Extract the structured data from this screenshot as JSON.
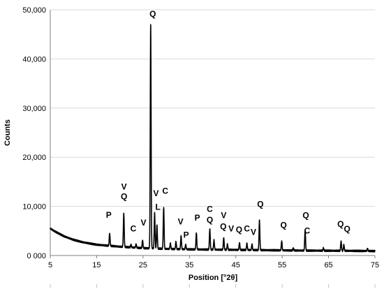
{
  "chart_data": {
    "type": "line",
    "title": "",
    "xlabel": "Position [°2θ]",
    "ylabel": "Counts",
    "xlim": [
      5,
      75
    ],
    "ylim": [
      0,
      50000
    ],
    "grid": "horizontal",
    "legend": "none",
    "x_ticks": [
      "5",
      "15",
      "25",
      "35",
      "45",
      "55",
      "65",
      "75"
    ],
    "y_ticks": [
      "0 000",
      "10,000",
      "20,000",
      "30,000",
      "40,000",
      "50,000"
    ],
    "x_tick_values": [
      5,
      15,
      25,
      35,
      45,
      55,
      65,
      75
    ],
    "y_tick_values": [
      0,
      10000,
      20000,
      30000,
      40000,
      50000
    ],
    "background": [
      [
        5,
        5500
      ],
      [
        6,
        4900
      ],
      [
        7,
        4400
      ],
      [
        8,
        3900
      ],
      [
        10,
        3200
      ],
      [
        12,
        2700
      ],
      [
        15,
        2200
      ],
      [
        20,
        1800
      ],
      [
        25,
        1500
      ],
      [
        30,
        1350
      ],
      [
        35,
        1250
      ],
      [
        40,
        1200
      ],
      [
        50,
        1100
      ],
      [
        60,
        1000
      ],
      [
        70,
        950
      ],
      [
        75,
        900
      ]
    ],
    "peaks": [
      {
        "x": 17.8,
        "y": 4500
      },
      {
        "x": 20.85,
        "y": 8600
      },
      {
        "x": 22.4,
        "y": 2200
      },
      {
        "x": 23.5,
        "y": 2300
      },
      {
        "x": 24.9,
        "y": 3100
      },
      {
        "x": 26.65,
        "y": 47000
      },
      {
        "x": 27.5,
        "y": 8600
      },
      {
        "x": 28.0,
        "y": 6200
      },
      {
        "x": 29.45,
        "y": 9800
      },
      {
        "x": 30.9,
        "y": 2500
      },
      {
        "x": 32.1,
        "y": 2800
      },
      {
        "x": 33.2,
        "y": 4000
      },
      {
        "x": 34.2,
        "y": 2200
      },
      {
        "x": 36.5,
        "y": 4600
      },
      {
        "x": 39.4,
        "y": 5400
      },
      {
        "x": 40.3,
        "y": 3100
      },
      {
        "x": 42.4,
        "y": 3600
      },
      {
        "x": 43.2,
        "y": 2300
      },
      {
        "x": 45.8,
        "y": 2600
      },
      {
        "x": 47.4,
        "y": 2500
      },
      {
        "x": 48.5,
        "y": 2300
      },
      {
        "x": 50.1,
        "y": 7100
      },
      {
        "x": 54.9,
        "y": 2900
      },
      {
        "x": 57.4,
        "y": 1500
      },
      {
        "x": 59.95,
        "y": 5100
      },
      {
        "x": 63.9,
        "y": 1500
      },
      {
        "x": 67.7,
        "y": 2900
      },
      {
        "x": 68.3,
        "y": 2200
      },
      {
        "x": 73.4,
        "y": 1400
      }
    ],
    "annotations": [
      {
        "text": "Q",
        "x": 27.1,
        "y": 48600
      },
      {
        "text": "V",
        "x": 20.9,
        "y": 13400
      },
      {
        "text": "Q",
        "x": 20.9,
        "y": 11400
      },
      {
        "text": "P",
        "x": 17.6,
        "y": 7700
      },
      {
        "text": "C",
        "x": 22.9,
        "y": 4900
      },
      {
        "text": "V",
        "x": 25.1,
        "y": 6100
      },
      {
        "text": "V",
        "x": 27.8,
        "y": 12100
      },
      {
        "text": "C",
        "x": 29.8,
        "y": 12600
      },
      {
        "text": "L",
        "x": 28.2,
        "y": 9300
      },
      {
        "text": "V",
        "x": 33.1,
        "y": 6300
      },
      {
        "text": "P",
        "x": 34.3,
        "y": 3600
      },
      {
        "text": "P",
        "x": 36.7,
        "y": 7100
      },
      {
        "text": "C",
        "x": 39.4,
        "y": 8900
      },
      {
        "text": "Q",
        "x": 39.4,
        "y": 6700
      },
      {
        "text": "V",
        "x": 42.4,
        "y": 7600
      },
      {
        "text": "Q",
        "x": 42.3,
        "y": 5300
      },
      {
        "text": "V",
        "x": 44.0,
        "y": 4900
      },
      {
        "text": "Q",
        "x": 45.7,
        "y": 4700
      },
      {
        "text": "C",
        "x": 47.4,
        "y": 4900
      },
      {
        "text": "V",
        "x": 48.8,
        "y": 4200
      },
      {
        "text": "Q",
        "x": 50.3,
        "y": 9900
      },
      {
        "text": "Q",
        "x": 55.3,
        "y": 5600
      },
      {
        "text": "Q",
        "x": 60.1,
        "y": 7600
      },
      {
        "text": "C",
        "x": 60.4,
        "y": 4500
      },
      {
        "text": "Q",
        "x": 67.6,
        "y": 5800
      },
      {
        "text": "Q",
        "x": 69.0,
        "y": 4800
      }
    ],
    "colors": {
      "line": "#000000",
      "grid": "#d9d9d9",
      "axis": "#7f7f7f"
    }
  }
}
